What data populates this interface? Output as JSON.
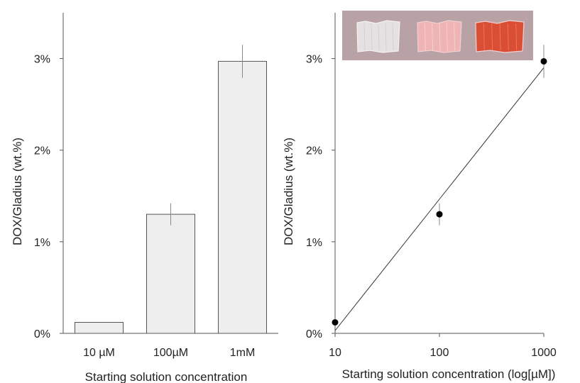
{
  "chart_data": [
    {
      "type": "bar",
      "categories": [
        "10 µM",
        "100µM",
        "1mM"
      ],
      "values": [
        0.12,
        1.3,
        2.97
      ],
      "errors": [
        0.0,
        0.12,
        0.18
      ],
      "ylim": [
        0,
        3.5
      ],
      "yticks": [
        "0%",
        "1%",
        "2%",
        "3%"
      ],
      "ylabel": "DOX/Gladius (wt.%)",
      "xlabel": "Starting solution concentration",
      "bar_color": "#eeeeee",
      "edge_color": "#555555",
      "grid": false
    },
    {
      "type": "scatter",
      "x": [
        10,
        100,
        1000
      ],
      "y": [
        0.12,
        1.3,
        2.97
      ],
      "errors": [
        0.0,
        0.12,
        0.18
      ],
      "xscale": "log",
      "xlim": [
        10,
        1000
      ],
      "ylim": [
        0,
        3.5
      ],
      "xticks": [
        "10",
        "100",
        "1000"
      ],
      "yticks": [
        "0%",
        "1%",
        "2%",
        "3%"
      ],
      "ylabel": "DOX/Gladius (wt.%)",
      "xlabel": "Starting solution concentration (log[µM])",
      "fit": {
        "kind": "linear",
        "y_at_xmin": 0.03,
        "y_at_xmax": 2.9
      },
      "marker_color": "#000000",
      "grid": false,
      "inset": {
        "samples": [
          "clear",
          "light pink",
          "red"
        ],
        "colors": [
          "#e8e4e6",
          "#f2b6b6",
          "#dc4a2f"
        ],
        "background": "#b8a2a6"
      }
    }
  ]
}
